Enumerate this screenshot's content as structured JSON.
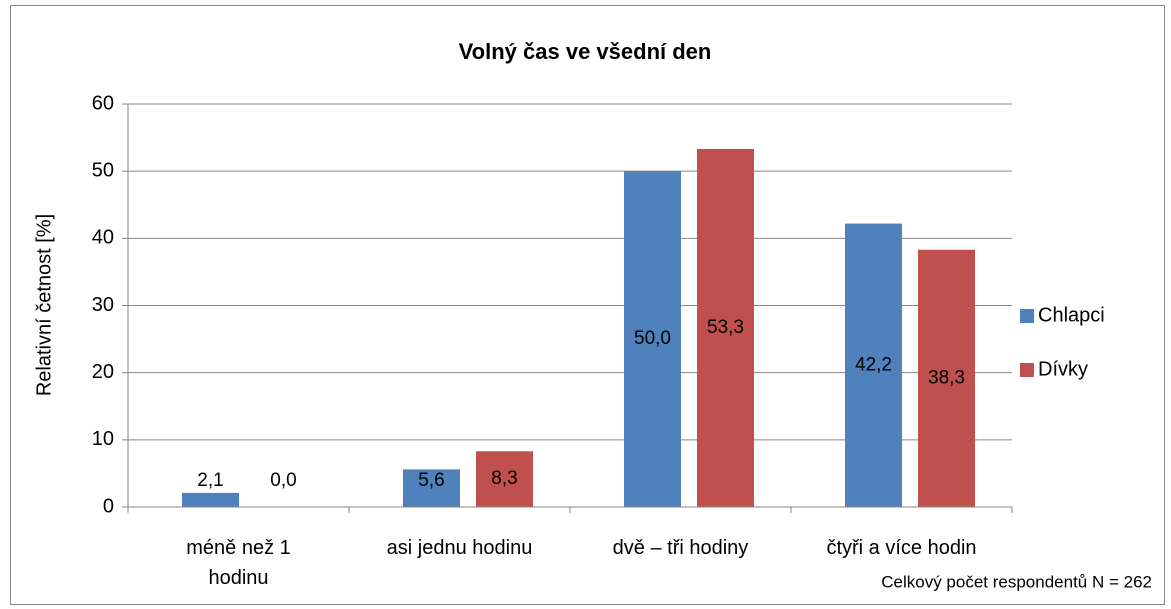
{
  "chart_data": {
    "type": "bar",
    "title": "Volný čas ve všední den",
    "y_label": "Relativní četnost [%]",
    "annotation": "Celkový počet respondentů N = 262",
    "categories": [
      "méně než 1\nhodinu",
      "asi jednu hodinu",
      "dvě – tři hodiny",
      "čtyři a více hodin"
    ],
    "series": [
      {
        "name": "Chlapci",
        "color": "#4f81bd",
        "values": [
          2.1,
          5.6,
          50.0,
          42.2
        ],
        "value_labels": [
          "2,1",
          "5,6",
          "50,0",
          "42,2"
        ]
      },
      {
        "name": "Dívky",
        "color": "#c0504d",
        "values": [
          0.0,
          8.3,
          53.3,
          38.3
        ],
        "value_labels": [
          "0,0",
          "8,3",
          "53,3",
          "38,3"
        ]
      }
    ],
    "ylim": [
      0,
      60
    ],
    "yticks": [
      0,
      10,
      20,
      30,
      40,
      50,
      60
    ],
    "grid": true,
    "legend": "right"
  }
}
